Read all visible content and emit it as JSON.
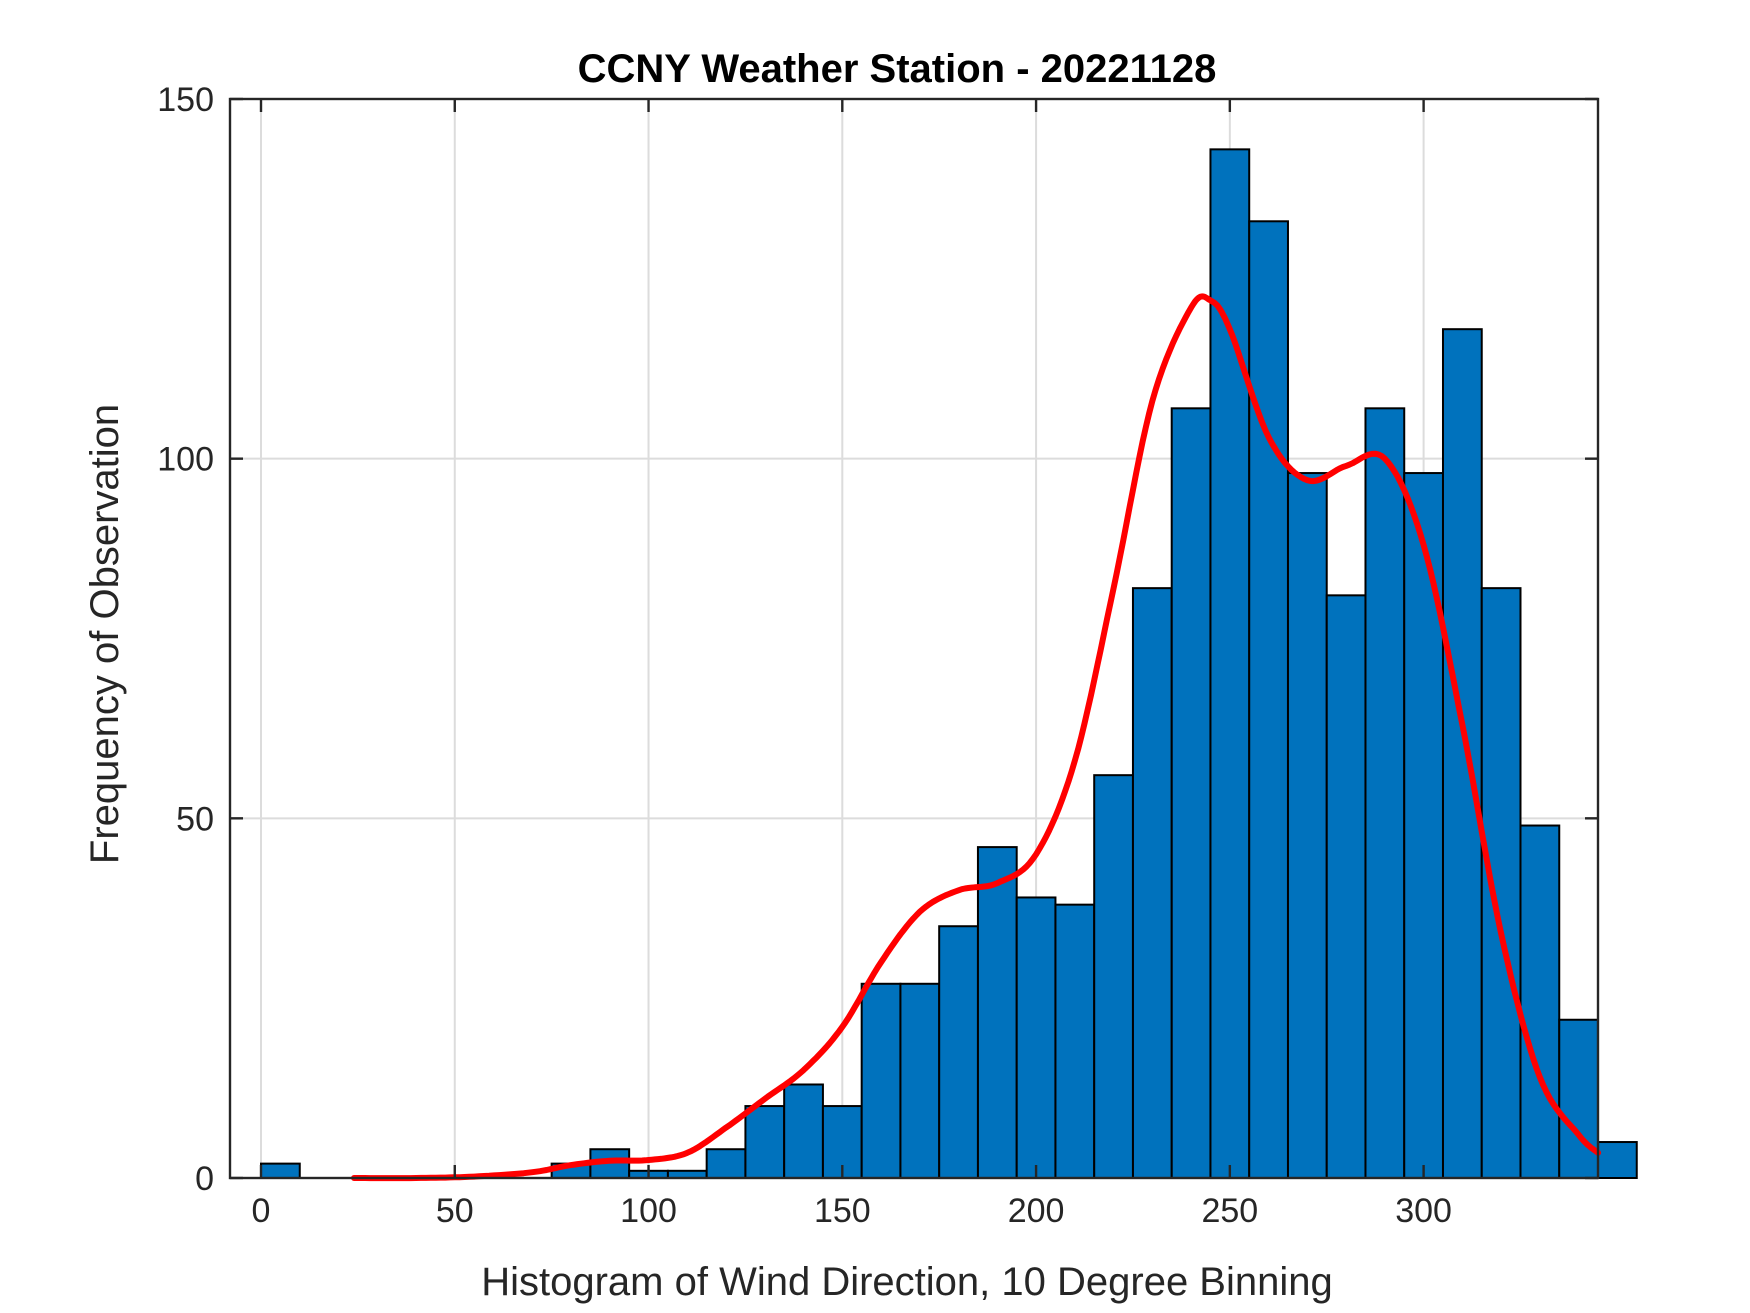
{
  "chart_data": {
    "type": "bar",
    "title": "CCNY Weather Station - 20221128",
    "xlabel": "Histogram of Wind Direction, 10 Degree Binning",
    "ylabel": "Frequency of Observation",
    "xlim": [
      -8,
      345
    ],
    "ylim": [
      0,
      150
    ],
    "xticks": [
      0,
      50,
      100,
      150,
      200,
      250,
      300
    ],
    "yticks": [
      0,
      50,
      100,
      150
    ],
    "grid": true,
    "bin_width": 10,
    "bins": [
      {
        "start": 0,
        "count": 2
      },
      {
        "start": 10,
        "count": 0
      },
      {
        "start": 20,
        "count": 0
      },
      {
        "start": 30,
        "count": 0
      },
      {
        "start": 40,
        "count": 0
      },
      {
        "start": 50,
        "count": 0
      },
      {
        "start": 60,
        "count": 0
      },
      {
        "start": 70,
        "count": 0
      },
      {
        "start": 75,
        "count": 2
      },
      {
        "start": 85,
        "count": 4
      },
      {
        "start": 95,
        "count": 1
      },
      {
        "start": 105,
        "count": 1
      },
      {
        "start": 115,
        "count": 4
      },
      {
        "start": 125,
        "count": 10
      },
      {
        "start": 135,
        "count": 13
      },
      {
        "start": 145,
        "count": 10
      },
      {
        "start": 155,
        "count": 27
      },
      {
        "start": 165,
        "count": 27
      },
      {
        "start": 175,
        "count": 35
      },
      {
        "start": 185,
        "count": 46
      },
      {
        "start": 195,
        "count": 39
      },
      {
        "start": 205,
        "count": 38
      },
      {
        "start": 215,
        "count": 56
      },
      {
        "start": 225,
        "count": 82
      },
      {
        "start": 235,
        "count": 107
      },
      {
        "start": 245,
        "count": 143
      },
      {
        "start": 255,
        "count": 133
      },
      {
        "start": 265,
        "count": 98
      },
      {
        "start": 275,
        "count": 81
      },
      {
        "start": 285,
        "count": 107
      },
      {
        "start": 295,
        "count": 98
      },
      {
        "start": 305,
        "count": 118
      },
      {
        "start": 315,
        "count": 82
      },
      {
        "start": 325,
        "count": 49
      },
      {
        "start": 335,
        "count": 22
      },
      {
        "start": 345,
        "count": 5
      }
    ],
    "density_curve": {
      "color": "#ff0000",
      "x": [
        24,
        40,
        55,
        70,
        80,
        90,
        100,
        110,
        120,
        130,
        140,
        150,
        160,
        170,
        180,
        190,
        200,
        210,
        220,
        230,
        240,
        245,
        250,
        260,
        270,
        280,
        290,
        300,
        310,
        320,
        330,
        340,
        345
      ],
      "y": [
        0,
        0,
        0.2,
        0.8,
        1.8,
        2.4,
        2.5,
        3.5,
        7,
        11,
        15,
        21,
        30,
        37,
        40,
        41,
        45,
        58,
        82,
        108,
        121,
        122,
        118,
        103,
        97,
        99,
        100,
        88,
        63,
        34,
        14,
        6,
        3.5
      ]
    },
    "bar_color": "#0072BD"
  }
}
